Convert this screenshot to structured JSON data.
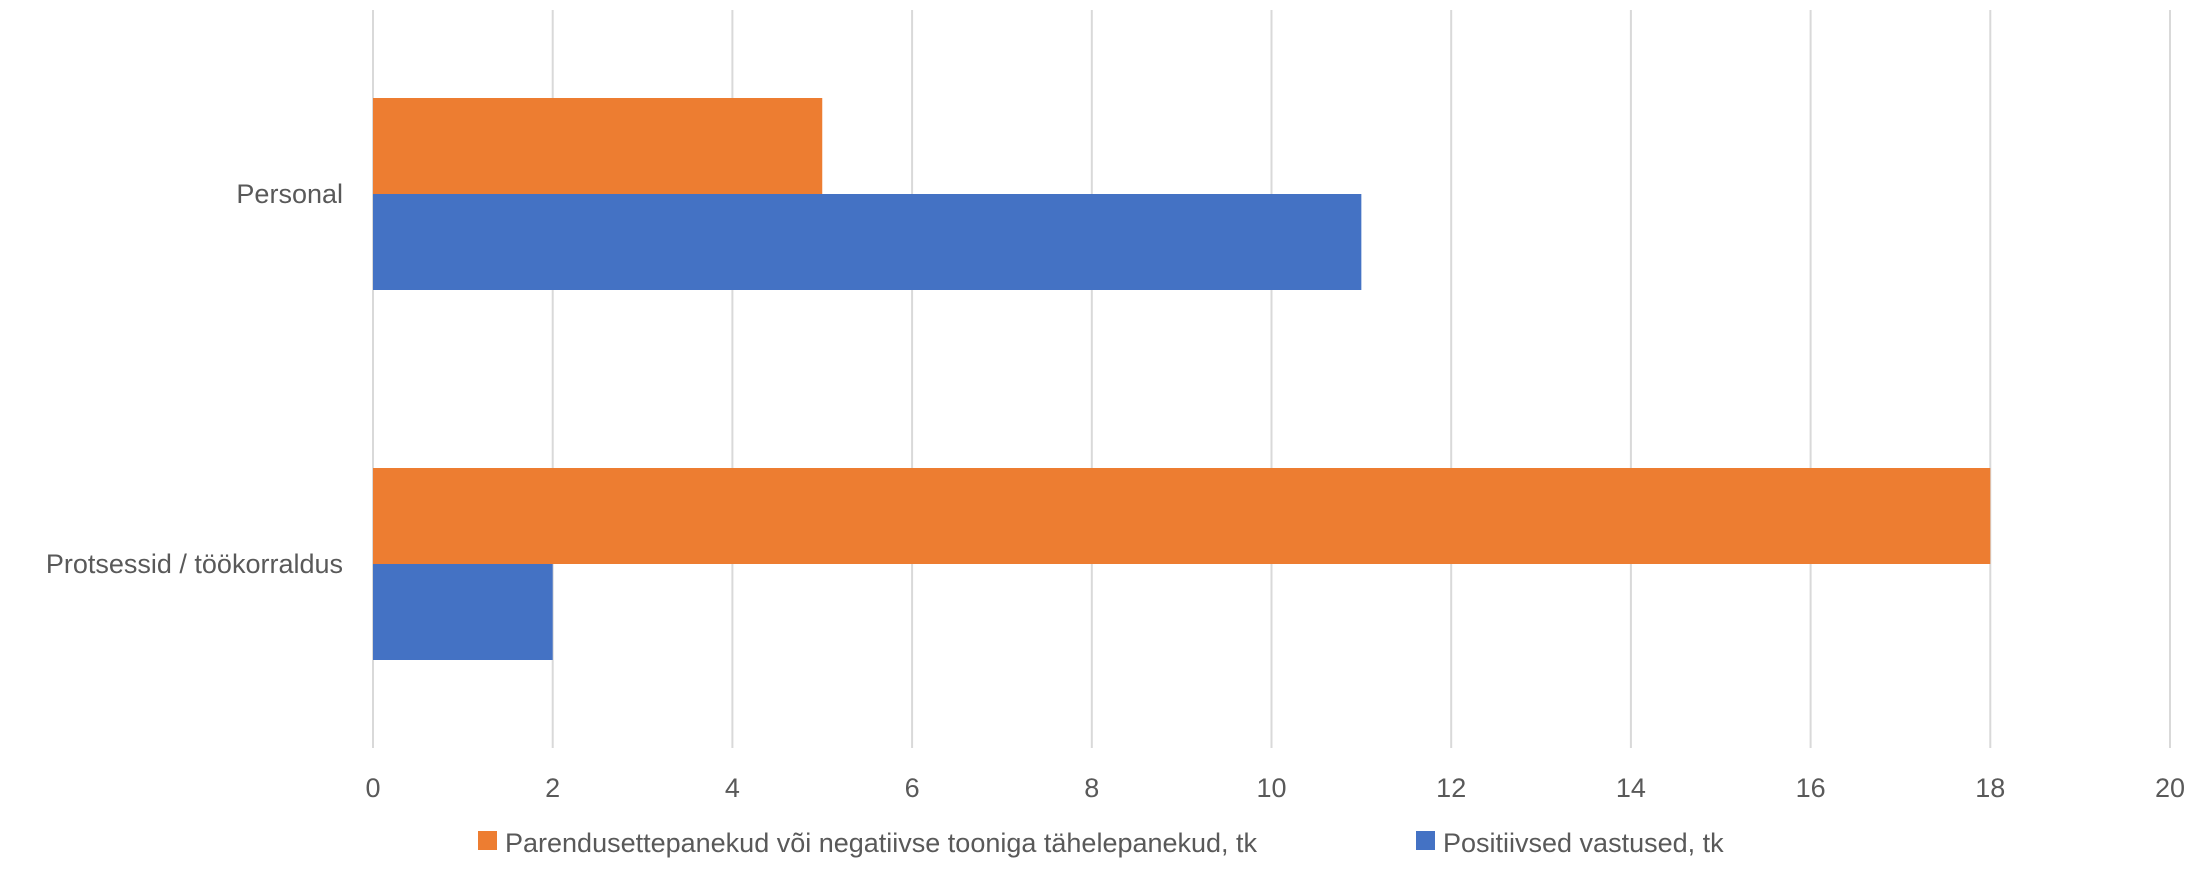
{
  "chart_data": {
    "type": "bar",
    "orientation": "horizontal",
    "categories": [
      "Personal",
      "Protsessid / töökorraldus"
    ],
    "series": [
      {
        "name": "Parendusettepanekud või negatiivse tooniga tähelepanekud, tk",
        "color": "#ED7D31",
        "values": [
          5,
          18
        ]
      },
      {
        "name": "Positiivsed vastused, tk",
        "color": "#4472C4",
        "values": [
          11,
          2
        ]
      }
    ],
    "title": "",
    "xlabel": "",
    "ylabel": "",
    "xlim": [
      0,
      20
    ],
    "xticks": [
      "0",
      "2",
      "4",
      "6",
      "8",
      "10",
      "12",
      "14",
      "16",
      "18",
      "20"
    ],
    "grid": "vertical",
    "legend_position": "bottom"
  }
}
